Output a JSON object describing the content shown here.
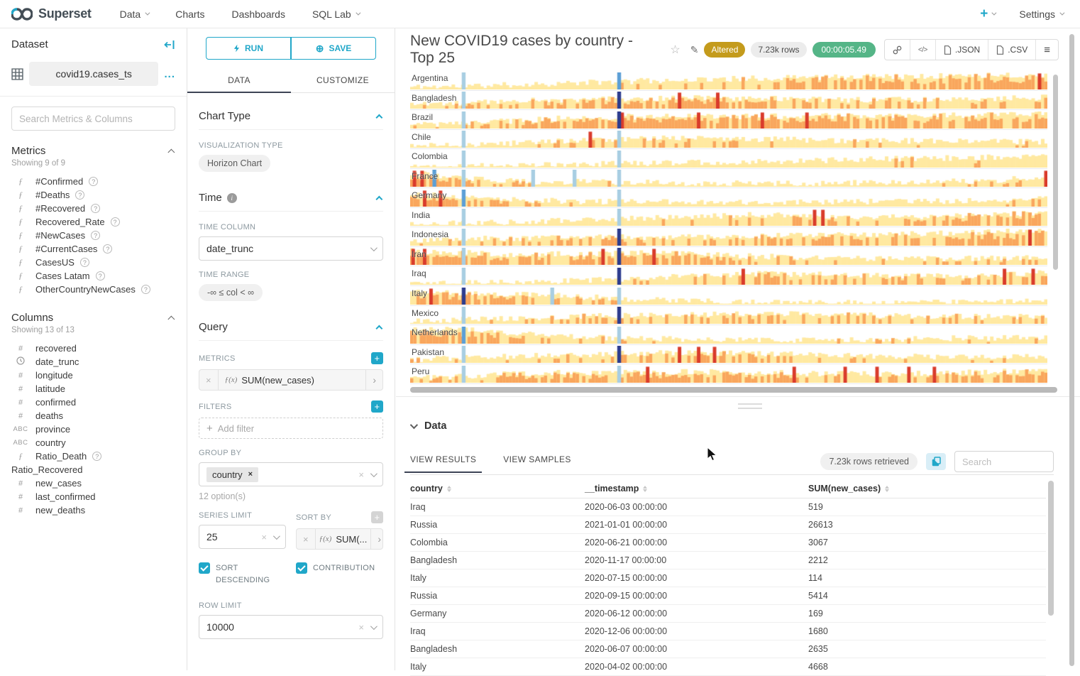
{
  "nav": {
    "brand": "Superset",
    "items": [
      {
        "label": "Data",
        "caret": true
      },
      {
        "label": "Charts",
        "caret": false
      },
      {
        "label": "Dashboards",
        "caret": false
      },
      {
        "label": "SQL Lab",
        "caret": true
      }
    ],
    "plus_label": "+",
    "settings_label": "Settings"
  },
  "left": {
    "title": "Dataset",
    "dataset_name": "covid19.cases_ts",
    "more_label": "...",
    "search_placeholder": "Search Metrics & Columns",
    "metrics": {
      "title": "Metrics",
      "showing": "Showing 9 of 9",
      "items": [
        "#Confirmed",
        "#Deaths",
        "#Recovered",
        "Recovered_Rate",
        "#NewCases",
        "#CurrentCases",
        "CasesUS",
        "Cases Latam",
        "OtherCountryNewCases"
      ]
    },
    "columns": {
      "title": "Columns",
      "showing": "Showing 13 of 13",
      "items": [
        {
          "icon": "hash",
          "label": "recovered",
          "help": false
        },
        {
          "icon": "clock",
          "label": "date_trunc",
          "help": false
        },
        {
          "icon": "hash",
          "label": "longitude",
          "help": false
        },
        {
          "icon": "hash",
          "label": "latitude",
          "help": false
        },
        {
          "icon": "hash",
          "label": "confirmed",
          "help": false
        },
        {
          "icon": "hash",
          "label": "deaths",
          "help": false
        },
        {
          "icon": "abc",
          "label": "province",
          "help": false
        },
        {
          "icon": "abc",
          "label": "country",
          "help": false
        },
        {
          "icon": "func",
          "label": "Ratio_Death",
          "help": true
        },
        {
          "icon": "none",
          "label": "Ratio_Recovered",
          "help": false
        },
        {
          "icon": "hash",
          "label": "new_cases",
          "help": false
        },
        {
          "icon": "hash",
          "label": "last_confirmed",
          "help": false
        },
        {
          "icon": "hash",
          "label": "new_deaths",
          "help": false
        }
      ]
    }
  },
  "controls": {
    "run_label": "RUN",
    "save_label": "SAVE",
    "tabs": [
      {
        "label": "DATA"
      },
      {
        "label": "CUSTOMIZE"
      }
    ],
    "chart_type": {
      "section": "Chart Type",
      "viz_label": "VISUALIZATION TYPE",
      "viz_value": "Horizon Chart"
    },
    "time": {
      "section": "Time",
      "col_label": "TIME COLUMN",
      "col_value": "date_trunc",
      "range_label": "TIME RANGE",
      "range_value": "-∞ ≤ col < ∞"
    },
    "query": {
      "section": "Query",
      "metrics_label": "METRICS",
      "metric_fx": "ƒ(x)",
      "metric_value": "SUM(new_cases)",
      "filters_label": "FILTERS",
      "add_filter_label": "Add filter",
      "groupby_label": "GROUP BY",
      "groupby_value": "country",
      "options_hint": "12 option(s)",
      "series_limit_label": "SERIES LIMIT",
      "series_limit_value": "25",
      "sortby_label": "SORT BY",
      "sortby_value": "SUM(...",
      "sort_desc_label": "SORT DESCENDING",
      "contribution_label": "CONTRIBUTION",
      "row_limit_label": "ROW LIMIT",
      "row_limit_value": "10000"
    }
  },
  "chart": {
    "title": "New COVID19 cases by country - Top 25",
    "badges": {
      "altered": "Altered",
      "rows": "7.23k rows",
      "duration": "00:00:05.49"
    },
    "buttons": {
      "json": ".JSON",
      "csv": ".CSV"
    }
  },
  "chart_data": {
    "type": "horizon",
    "title": "New COVID19 cases by country - Top 25",
    "metric": "SUM(new_cases)",
    "categories": [
      "Argentina",
      "Bangladesh",
      "Brazil",
      "Chile",
      "Colombia",
      "France",
      "Germany",
      "India",
      "Indonesia",
      "Iran",
      "Iraq",
      "Italy",
      "Mexico",
      "Netherlands",
      "Pakistan",
      "Peru"
    ],
    "palette": {
      "pale": "#FFE9A1",
      "orange": "#F9A65D",
      "red": "#D93B2B",
      "light": "#A8CEE2",
      "med": "#5C9FD6",
      "dark": "#2D3C8E"
    },
    "rows": [
      {
        "name": "Argentina",
        "seed": 11,
        "env": [
          0.15,
          0.2,
          0.3,
          0.4,
          0.5,
          0.6,
          0.65,
          0.7,
          0.75,
          0.8,
          0.85,
          0.8
        ],
        "orange": [
          0,
          0,
          0,
          0.1,
          0.15,
          0.2,
          0.3,
          0.5,
          0.6,
          0.7,
          0.7,
          0.75
        ],
        "red": [
          0.985
        ],
        "blue": [
          {
            "x": 0.081,
            "c": "light"
          },
          {
            "x": 0.325,
            "c": "med"
          }
        ]
      },
      {
        "name": "Bangladesh",
        "seed": 22,
        "env": [
          0.3,
          0.35,
          0.5,
          0.55,
          0.6,
          0.65,
          0.6,
          0.55,
          0.5,
          0.55,
          0.6,
          0.65
        ],
        "orange": [
          0.1,
          0.2,
          0.5,
          0.7,
          0.8,
          0.8,
          0.6,
          0.3,
          0.2,
          0.3,
          0.4,
          0.4
        ],
        "red": [
          0.42,
          0.48
        ],
        "blue": [
          {
            "x": 0.081,
            "c": "light"
          },
          {
            "x": 0.325,
            "c": "dark"
          }
        ]
      },
      {
        "name": "Brazil",
        "seed": 33,
        "env": [
          0.2,
          0.3,
          0.5,
          0.65,
          0.7,
          0.75,
          0.7,
          0.75,
          0.7,
          0.75,
          0.8,
          0.85
        ],
        "orange": [
          0.1,
          0.3,
          0.6,
          0.8,
          0.9,
          0.9,
          0.8,
          0.8,
          0.7,
          0.8,
          0.8,
          0.9
        ],
        "red": [
          0.33,
          0.45,
          0.55,
          0.62
        ],
        "blue": [
          {
            "x": 0.081,
            "c": "light"
          },
          {
            "x": 0.325,
            "c": "dark"
          }
        ]
      },
      {
        "name": "Chile",
        "seed": 44,
        "env": [
          0.1,
          0.15,
          0.3,
          0.45,
          0.55,
          0.6,
          0.5,
          0.45,
          0.4,
          0.4,
          0.35,
          0.35
        ],
        "orange": [
          0,
          0,
          0.1,
          0.3,
          0.4,
          0.3,
          0.2,
          0.1,
          0.05,
          0.05,
          0.05,
          0.05
        ],
        "red": [
          0.28
        ],
        "blue": [
          {
            "x": 0.081,
            "c": "light"
          },
          {
            "x": 0.325,
            "c": "light"
          }
        ]
      },
      {
        "name": "Colombia",
        "seed": 55,
        "env": [
          0.1,
          0.12,
          0.15,
          0.2,
          0.25,
          0.3,
          0.35,
          0.4,
          0.5,
          0.55,
          0.6,
          0.65
        ],
        "orange": [
          0,
          0,
          0,
          0,
          0,
          0,
          0,
          0.02,
          0.05,
          0.05,
          0.08,
          0.1
        ],
        "red": [],
        "blue": [
          {
            "x": 0.081,
            "c": "light"
          },
          {
            "x": 0.325,
            "c": "light"
          }
        ]
      },
      {
        "name": "France",
        "seed": 66,
        "env": [
          0.8,
          0.5,
          0.3,
          0.3,
          0.25,
          0.2,
          0.2,
          0.2,
          0.25,
          0.3,
          0.35,
          0.6
        ],
        "orange": [
          0.9,
          0.5,
          0.1,
          0.05,
          0,
          0,
          0,
          0,
          0.05,
          0.1,
          0.2,
          0.5
        ],
        "red": [
          0.004,
          0.016,
          0.995
        ],
        "blue": [
          {
            "x": 0.035,
            "c": "med"
          },
          {
            "x": 0.081,
            "c": "light"
          },
          {
            "x": 0.19,
            "c": "light"
          },
          {
            "x": 0.255,
            "c": "light"
          },
          {
            "x": 0.325,
            "c": "light"
          }
        ]
      },
      {
        "name": "Germany",
        "seed": 77,
        "env": [
          0.7,
          0.6,
          0.4,
          0.3,
          0.3,
          0.25,
          0.25,
          0.25,
          0.3,
          0.3,
          0.35,
          0.45
        ],
        "orange": [
          0.8,
          0.7,
          0.3,
          0.1,
          0.05,
          0,
          0,
          0,
          0.05,
          0.05,
          0.1,
          0.3
        ],
        "red": [
          0.02,
          0.045
        ],
        "blue": [
          {
            "x": 0.081,
            "c": "med"
          },
          {
            "x": 0.325,
            "c": "light"
          }
        ]
      },
      {
        "name": "India",
        "seed": 88,
        "env": [
          0.1,
          0.15,
          0.25,
          0.35,
          0.45,
          0.55,
          0.65,
          0.6,
          0.5,
          0.55,
          0.65,
          0.75
        ],
        "orange": [
          0,
          0,
          0,
          0.05,
          0.1,
          0.2,
          0.3,
          0.3,
          0.3,
          0.5,
          0.6,
          0.7
        ],
        "red": [
          0.632,
          0.645
        ],
        "blue": [
          {
            "x": 0.081,
            "c": "light"
          },
          {
            "x": 0.325,
            "c": "light"
          }
        ]
      },
      {
        "name": "Indonesia",
        "seed": 99,
        "env": [
          0.35,
          0.4,
          0.45,
          0.5,
          0.5,
          0.55,
          0.6,
          0.6,
          0.65,
          0.7,
          0.8,
          0.9
        ],
        "orange": [
          0.2,
          0.3,
          0.3,
          0.4,
          0.4,
          0.5,
          0.5,
          0.5,
          0.5,
          0.6,
          0.7,
          0.8
        ],
        "red": [
          0.97
        ],
        "blue": [
          {
            "x": 0.081,
            "c": "light"
          },
          {
            "x": 0.325,
            "c": "dark"
          }
        ]
      },
      {
        "name": "Iran",
        "seed": 111,
        "env": [
          0.8,
          0.7,
          0.6,
          0.65,
          0.7,
          0.6,
          0.5,
          0.4,
          0.35,
          0.35,
          0.4,
          0.45
        ],
        "orange": [
          0.9,
          0.8,
          0.6,
          0.7,
          0.8,
          0.6,
          0.4,
          0.2,
          0.1,
          0.1,
          0.2,
          0.2
        ],
        "red": [
          0.002,
          0.02,
          0.3,
          0.325,
          0.38
        ],
        "blue": [
          {
            "x": 0.081,
            "c": "light"
          },
          {
            "x": 0.325,
            "c": "dark"
          }
        ]
      },
      {
        "name": "Iraq",
        "seed": 122,
        "env": [
          0.08,
          0.1,
          0.15,
          0.25,
          0.4,
          0.55,
          0.65,
          0.6,
          0.55,
          0.5,
          0.55,
          0.7
        ],
        "orange": [
          0,
          0,
          0,
          0.05,
          0.2,
          0.4,
          0.5,
          0.4,
          0.4,
          0.4,
          0.5,
          0.7
        ],
        "red": [
          0.52,
          0.93,
          0.975
        ],
        "blue": [
          {
            "x": 0.081,
            "c": "light"
          },
          {
            "x": 0.325,
            "c": "dark"
          }
        ]
      },
      {
        "name": "Italy",
        "seed": 133,
        "env": [
          0.75,
          0.7,
          0.6,
          0.45,
          0.3,
          0.2,
          0.15,
          0.12,
          0.1,
          0.12,
          0.15,
          0.2
        ],
        "orange": [
          0.7,
          0.8,
          0.5,
          0.2,
          0.05,
          0,
          0,
          0,
          0,
          0,
          0,
          0.05
        ],
        "red": [
          0.03
        ],
        "blue": [
          {
            "x": 0.081,
            "c": "dark"
          },
          {
            "x": 0.22,
            "c": "light"
          },
          {
            "x": 0.325,
            "c": "light"
          }
        ]
      },
      {
        "name": "Mexico",
        "seed": 144,
        "env": [
          0.15,
          0.25,
          0.35,
          0.45,
          0.5,
          0.55,
          0.6,
          0.55,
          0.5,
          0.45,
          0.4,
          0.45
        ],
        "orange": [
          0.05,
          0.1,
          0.2,
          0.3,
          0.3,
          0.4,
          0.4,
          0.4,
          0.3,
          0.2,
          0.2,
          0.3
        ],
        "red": [],
        "blue": [
          {
            "x": 0.081,
            "c": "light"
          },
          {
            "x": 0.325,
            "c": "dark"
          }
        ]
      },
      {
        "name": "Netherlands",
        "seed": 155,
        "env": [
          0.85,
          0.8,
          0.6,
          0.4,
          0.3,
          0.25,
          0.2,
          0.2,
          0.25,
          0.3,
          0.35,
          0.4
        ],
        "orange": [
          0.8,
          0.8,
          0.5,
          0.2,
          0.1,
          0.05,
          0,
          0,
          0.05,
          0.05,
          0.1,
          0.15
        ],
        "red": [],
        "blue": [
          {
            "x": 0.081,
            "c": "med"
          },
          {
            "x": 0.325,
            "c": "light"
          }
        ]
      },
      {
        "name": "Pakistan",
        "seed": 166,
        "env": [
          0.2,
          0.3,
          0.4,
          0.5,
          0.55,
          0.6,
          0.55,
          0.5,
          0.4,
          0.35,
          0.35,
          0.4
        ],
        "orange": [
          0.05,
          0.1,
          0.2,
          0.3,
          0.4,
          0.5,
          0.4,
          0.3,
          0.2,
          0.1,
          0.1,
          0.15
        ],
        "red": [
          0.42,
          0.45,
          0.475
        ],
        "blue": [
          {
            "x": 0.081,
            "c": "light"
          },
          {
            "x": 0.325,
            "c": "dark"
          }
        ]
      },
      {
        "name": "Peru",
        "seed": 177,
        "env": [
          0.3,
          0.4,
          0.55,
          0.6,
          0.6,
          0.65,
          0.6,
          0.55,
          0.5,
          0.55,
          0.65,
          0.7
        ],
        "orange": [
          0.2,
          0.4,
          0.7,
          0.7,
          0.7,
          0.7,
          0.6,
          0.5,
          0.4,
          0.5,
          0.6,
          0.7
        ],
        "red": [
          0.37,
          0.6,
          0.68,
          0.73,
          0.78,
          0.82
        ],
        "blue": [
          {
            "x": 0.081,
            "c": "light"
          },
          {
            "x": 0.325,
            "c": "light"
          }
        ]
      }
    ]
  },
  "datapanel": {
    "title": "Data",
    "tabs": [
      {
        "label": "VIEW RESULTS"
      },
      {
        "label": "VIEW SAMPLES"
      }
    ],
    "rows_badge": "7.23k rows retrieved",
    "search_placeholder": "Search",
    "table": {
      "columns": [
        "country",
        "__timestamp",
        "SUM(new_cases)"
      ],
      "rows": [
        [
          "Iraq",
          "2020-06-03 00:00:00",
          "519"
        ],
        [
          "Russia",
          "2021-01-01 00:00:00",
          "26613"
        ],
        [
          "Colombia",
          "2020-06-21 00:00:00",
          "3067"
        ],
        [
          "Bangladesh",
          "2020-11-17 00:00:00",
          "2212"
        ],
        [
          "Italy",
          "2020-07-15 00:00:00",
          "114"
        ],
        [
          "Russia",
          "2020-09-15 00:00:00",
          "5414"
        ],
        [
          "Germany",
          "2020-06-12 00:00:00",
          "169"
        ],
        [
          "Iraq",
          "2020-12-06 00:00:00",
          "1680"
        ],
        [
          "Bangladesh",
          "2020-06-07 00:00:00",
          "2635"
        ],
        [
          "Italy",
          "2020-04-02 00:00:00",
          "4668"
        ]
      ]
    }
  }
}
